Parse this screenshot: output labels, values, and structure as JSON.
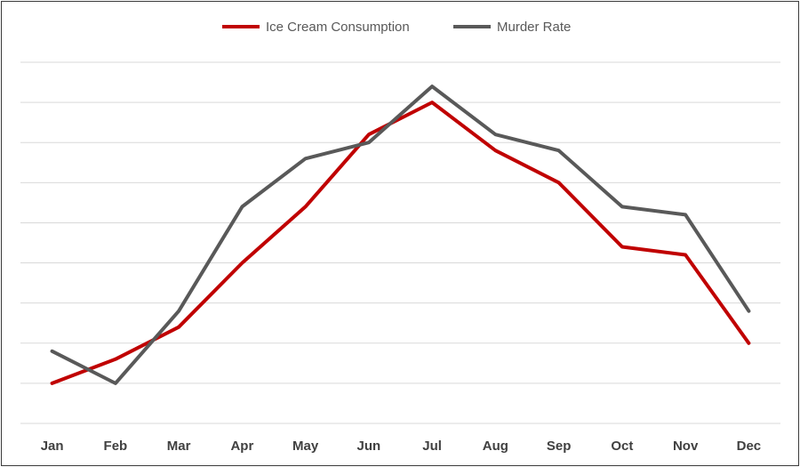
{
  "chart_data": {
    "type": "line",
    "title": "",
    "xlabel": "",
    "ylabel": "",
    "categories": [
      "Jan",
      "Feb",
      "Mar",
      "Apr",
      "May",
      "Jun",
      "Jul",
      "Aug",
      "Sep",
      "Oct",
      "Nov",
      "Dec"
    ],
    "ylim": [
      0,
      9
    ],
    "y_ticks_shown": false,
    "grid": true,
    "legend_position": "top-center",
    "series": [
      {
        "name": "Ice Cream Consumption",
        "color": "#c00000",
        "values": [
          1.0,
          1.6,
          2.4,
          4.0,
          5.4,
          7.2,
          8.0,
          6.8,
          6.0,
          4.4,
          4.2,
          2.0
        ]
      },
      {
        "name": "Murder Rate",
        "color": "#595959",
        "values": [
          1.8,
          1.0,
          2.8,
          5.4,
          6.6,
          7.0,
          8.4,
          7.2,
          6.8,
          5.4,
          5.2,
          2.8
        ]
      }
    ]
  }
}
